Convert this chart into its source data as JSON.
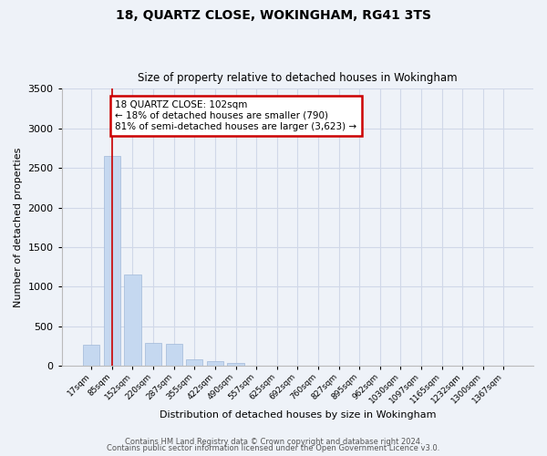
{
  "title1": "18, QUARTZ CLOSE, WOKINGHAM, RG41 3TS",
  "title2": "Size of property relative to detached houses in Wokingham",
  "xlabel": "Distribution of detached houses by size in Wokingham",
  "ylabel": "Number of detached properties",
  "categories": [
    "17sqm",
    "85sqm",
    "152sqm",
    "220sqm",
    "287sqm",
    "355sqm",
    "422sqm",
    "490sqm",
    "557sqm",
    "625sqm",
    "692sqm",
    "760sqm",
    "827sqm",
    "895sqm",
    "962sqm",
    "1030sqm",
    "1097sqm",
    "1165sqm",
    "1232sqm",
    "1300sqm",
    "1367sqm"
  ],
  "values": [
    270,
    2650,
    1150,
    290,
    285,
    90,
    60,
    35,
    0,
    0,
    0,
    0,
    0,
    0,
    0,
    0,
    0,
    0,
    0,
    0,
    0
  ],
  "bar_color": "#c5d8f0",
  "bar_edge_color": "#a0b8d8",
  "grid_color": "#d0d8e8",
  "background_color": "#eef2f8",
  "red_line_x": 1.0,
  "annotation_text": "18 QUARTZ CLOSE: 102sqm\n← 18% of detached houses are smaller (790)\n81% of semi-detached houses are larger (3,623) →",
  "annotation_box_color": "#ffffff",
  "annotation_box_edge_color": "#cc0000",
  "annotation_line_color": "#cc0000",
  "footnote1": "Contains HM Land Registry data © Crown copyright and database right 2024.",
  "footnote2": "Contains public sector information licensed under the Open Government Licence v3.0.",
  "ylim": [
    0,
    3500
  ],
  "yticks": [
    0,
    500,
    1000,
    1500,
    2000,
    2500,
    3000,
    3500
  ]
}
